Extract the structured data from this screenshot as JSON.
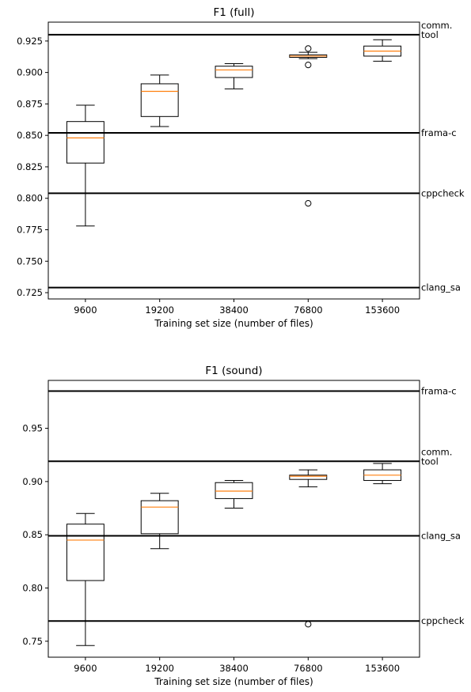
{
  "chart_data": [
    {
      "type": "box",
      "title": "F1 (full)",
      "xlabel": "Training set size (number of files)",
      "ylabel": "",
      "ylim": [
        0.72,
        0.94
      ],
      "yticks": [
        0.725,
        0.75,
        0.775,
        0.8,
        0.825,
        0.85,
        0.875,
        0.9,
        0.925
      ],
      "ytick_labels": [
        "0.725",
        "0.750",
        "0.775",
        "0.800",
        "0.825",
        "0.850",
        "0.875",
        "0.900",
        "0.925"
      ],
      "categories": [
        "9600",
        "19200",
        "38400",
        "76800",
        "153600"
      ],
      "boxes": [
        {
          "whislo": 0.778,
          "q1": 0.828,
          "med": 0.848,
          "q3": 0.861,
          "whishi": 0.874,
          "fliers": []
        },
        {
          "whislo": 0.857,
          "q1": 0.865,
          "med": 0.885,
          "q3": 0.891,
          "whishi": 0.898,
          "fliers": []
        },
        {
          "whislo": 0.887,
          "q1": 0.896,
          "med": 0.902,
          "q3": 0.905,
          "whishi": 0.907,
          "fliers": []
        },
        {
          "whislo": 0.911,
          "q1": 0.912,
          "med": 0.913,
          "q3": 0.914,
          "whishi": 0.916,
          "fliers": [
            0.919,
            0.906,
            0.796
          ]
        },
        {
          "whislo": 0.909,
          "q1": 0.913,
          "med": 0.917,
          "q3": 0.921,
          "whishi": 0.926,
          "fliers": []
        }
      ],
      "reference_lines": [
        {
          "label": "comm.\ntool",
          "value": 0.93
        },
        {
          "label": "frama-c",
          "value": 0.852
        },
        {
          "label": "cppcheck",
          "value": 0.804
        },
        {
          "label": "clang_sa",
          "value": 0.729
        }
      ]
    },
    {
      "type": "box",
      "title": "F1 (sound)",
      "xlabel": "Training set size (number of files)",
      "ylabel": "",
      "ylim": [
        0.735,
        0.995
      ],
      "yticks": [
        0.75,
        0.8,
        0.85,
        0.9,
        0.95
      ],
      "ytick_labels": [
        "0.75",
        "0.80",
        "0.85",
        "0.90",
        "0.95"
      ],
      "categories": [
        "9600",
        "19200",
        "38400",
        "76800",
        "153600"
      ],
      "boxes": [
        {
          "whislo": 0.746,
          "q1": 0.807,
          "med": 0.845,
          "q3": 0.86,
          "whishi": 0.87,
          "fliers": []
        },
        {
          "whislo": 0.837,
          "q1": 0.851,
          "med": 0.876,
          "q3": 0.882,
          "whishi": 0.889,
          "fliers": []
        },
        {
          "whislo": 0.875,
          "q1": 0.884,
          "med": 0.891,
          "q3": 0.899,
          "whishi": 0.901,
          "fliers": []
        },
        {
          "whislo": 0.895,
          "q1": 0.902,
          "med": 0.905,
          "q3": 0.906,
          "whishi": 0.911,
          "fliers": [
            0.766
          ]
        },
        {
          "whislo": 0.898,
          "q1": 0.901,
          "med": 0.906,
          "q3": 0.911,
          "whishi": 0.917,
          "fliers": []
        }
      ],
      "reference_lines": [
        {
          "label": "frama-c",
          "value": 0.985
        },
        {
          "label": "comm.\ntool",
          "value": 0.919
        },
        {
          "label": "clang_sa",
          "value": 0.849
        },
        {
          "label": "cppcheck",
          "value": 0.769
        }
      ]
    }
  ]
}
